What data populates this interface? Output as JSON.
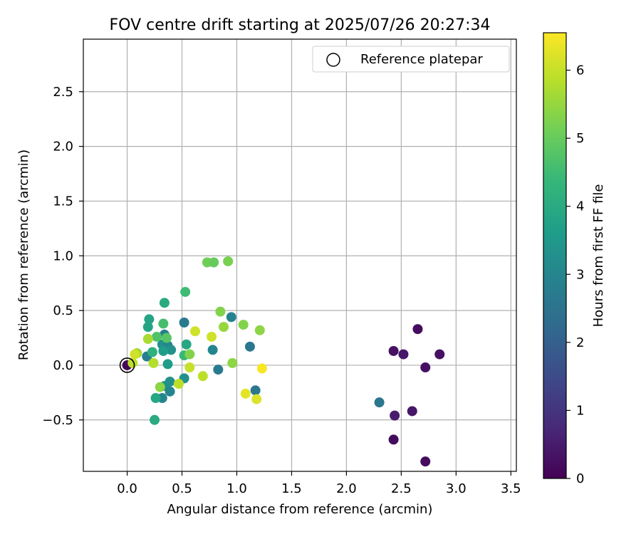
{
  "chart_data": {
    "type": "scatter",
    "title": "FOV centre drift starting at 2025/07/26 20:27:34",
    "xlabel": "Angular distance from reference (arcmin)",
    "ylabel": "Rotation from reference (arcmin)",
    "xlim": [
      -0.4,
      3.55
    ],
    "ylim": [
      -0.97,
      2.98
    ],
    "xticks": [
      0.0,
      0.5,
      1.0,
      1.5,
      2.0,
      2.5,
      3.0,
      3.5
    ],
    "xtick_labels": [
      "0.0",
      "0.5",
      "1.0",
      "1.5",
      "2.0",
      "2.5",
      "3.0",
      "3.5"
    ],
    "yticks": [
      -0.5,
      0.0,
      0.5,
      1.0,
      1.5,
      2.0,
      2.5
    ],
    "ytick_labels": [
      "−0.5",
      "0.0",
      "0.5",
      "1.0",
      "1.5",
      "2.0",
      "2.5"
    ],
    "grid": true,
    "legend": {
      "placement": "top-right",
      "entries": [
        "Reference platepar"
      ]
    },
    "reference_point": {
      "x": 0.0,
      "y": 0.0
    },
    "colorbar": {
      "label": "Hours from first FF file",
      "range": [
        0,
        6.55
      ],
      "ticks": [
        0,
        1,
        2,
        3,
        4,
        5,
        6
      ],
      "tick_labels": [
        "0",
        "1",
        "2",
        "3",
        "4",
        "5",
        "6"
      ],
      "colormap": "viridis"
    },
    "points": [
      {
        "x": 2.65,
        "y": 0.33,
        "c": 0.2
      },
      {
        "x": 2.43,
        "y": 0.13,
        "c": 0.3
      },
      {
        "x": 2.52,
        "y": 0.1,
        "c": 0.4
      },
      {
        "x": 2.85,
        "y": 0.1,
        "c": 0.3
      },
      {
        "x": 2.72,
        "y": -0.02,
        "c": 0.3
      },
      {
        "x": 2.6,
        "y": -0.42,
        "c": 0.4
      },
      {
        "x": 2.44,
        "y": -0.46,
        "c": 0.5
      },
      {
        "x": 2.43,
        "y": -0.68,
        "c": 0.2
      },
      {
        "x": 2.72,
        "y": -0.88,
        "c": 0.2
      },
      {
        "x": 2.3,
        "y": -0.34,
        "c": 2.6
      },
      {
        "x": 0.0,
        "y": 0.0,
        "c": 0.1
      },
      {
        "x": 0.95,
        "y": 0.44,
        "c": 2.9
      },
      {
        "x": 1.12,
        "y": 0.17,
        "c": 2.6
      },
      {
        "x": 0.78,
        "y": 0.14,
        "c": 3.0
      },
      {
        "x": 0.83,
        "y": -0.04,
        "c": 2.7
      },
      {
        "x": 1.17,
        "y": -0.23,
        "c": 2.6
      },
      {
        "x": 0.52,
        "y": 0.39,
        "c": 2.7
      },
      {
        "x": 0.34,
        "y": 0.28,
        "c": 2.8
      },
      {
        "x": 0.32,
        "y": 0.19,
        "c": 3.3
      },
      {
        "x": 0.37,
        "y": 0.18,
        "c": 3.0
      },
      {
        "x": 0.4,
        "y": 0.14,
        "c": 3.3
      },
      {
        "x": 0.33,
        "y": 0.13,
        "c": 3.6
      },
      {
        "x": 0.18,
        "y": 0.08,
        "c": 2.8
      },
      {
        "x": 0.37,
        "y": 0.01,
        "c": 3.6
      },
      {
        "x": 0.39,
        "y": -0.15,
        "c": 3.3
      },
      {
        "x": 0.34,
        "y": -0.19,
        "c": 3.3
      },
      {
        "x": 0.39,
        "y": -0.24,
        "c": 3.0
      },
      {
        "x": 0.32,
        "y": -0.3,
        "c": 3.0
      },
      {
        "x": 0.26,
        "y": -0.3,
        "c": 3.9
      },
      {
        "x": 0.52,
        "y": -0.12,
        "c": 3.3
      },
      {
        "x": 0.2,
        "y": 0.42,
        "c": 3.8
      },
      {
        "x": 0.19,
        "y": 0.35,
        "c": 3.8
      },
      {
        "x": 0.34,
        "y": 0.57,
        "c": 4.0
      },
      {
        "x": 0.25,
        "y": -0.5,
        "c": 4.0
      },
      {
        "x": 0.23,
        "y": 0.12,
        "c": 4.2
      },
      {
        "x": 0.54,
        "y": 0.19,
        "c": 3.9
      },
      {
        "x": 0.53,
        "y": 0.67,
        "c": 4.5
      },
      {
        "x": 0.33,
        "y": 0.38,
        "c": 4.6
      },
      {
        "x": 0.27,
        "y": 0.26,
        "c": 4.7
      },
      {
        "x": 0.36,
        "y": 0.25,
        "c": 4.8
      },
      {
        "x": 0.52,
        "y": 0.09,
        "c": 4.4
      },
      {
        "x": 0.73,
        "y": 0.94,
        "c": 5.1
      },
      {
        "x": 0.79,
        "y": 0.94,
        "c": 5.0
      },
      {
        "x": 0.92,
        "y": 0.95,
        "c": 5.2
      },
      {
        "x": 0.85,
        "y": 0.49,
        "c": 5.3
      },
      {
        "x": 1.06,
        "y": 0.37,
        "c": 5.3
      },
      {
        "x": 0.88,
        "y": 0.35,
        "c": 5.5
      },
      {
        "x": 1.21,
        "y": 0.32,
        "c": 5.4
      },
      {
        "x": 0.96,
        "y": 0.02,
        "c": 5.4
      },
      {
        "x": 0.57,
        "y": 0.1,
        "c": 5.3
      },
      {
        "x": 0.3,
        "y": -0.2,
        "c": 5.4
      },
      {
        "x": 0.19,
        "y": 0.24,
        "c": 5.7
      },
      {
        "x": 0.09,
        "y": 0.11,
        "c": 5.6
      },
      {
        "x": 0.24,
        "y": 0.02,
        "c": 5.8
      },
      {
        "x": 0.05,
        "y": 0.02,
        "c": 5.9
      },
      {
        "x": 0.62,
        "y": 0.31,
        "c": 6.1
      },
      {
        "x": 0.77,
        "y": 0.26,
        "c": 6.1
      },
      {
        "x": 0.57,
        "y": -0.02,
        "c": 6.0
      },
      {
        "x": 0.69,
        "y": -0.1,
        "c": 5.9
      },
      {
        "x": 0.47,
        "y": -0.17,
        "c": 5.9
      },
      {
        "x": 1.08,
        "y": -0.26,
        "c": 6.3
      },
      {
        "x": 1.18,
        "y": -0.31,
        "c": 6.2
      },
      {
        "x": 1.23,
        "y": -0.03,
        "c": 6.5
      },
      {
        "x": 0.07,
        "y": 0.1,
        "c": 6.1
      }
    ]
  }
}
